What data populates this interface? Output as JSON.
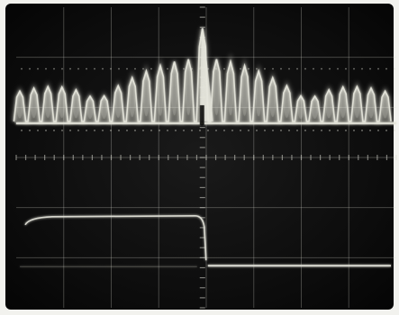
{
  "image": {
    "subject": "oscilloscope-display",
    "colors": {
      "frame": "#f2f2ee",
      "screen": "#0b0b0b",
      "graticule": "#d9d9d0",
      "trace": "#e6e6dc"
    },
    "graticule": {
      "columns": 8,
      "rows": 6,
      "minor_ticks_per_division": 5
    },
    "upper_trace": {
      "shape": "comb-spectrum",
      "center_fraction": 0.49,
      "peak_count_per_side": 13,
      "peak_at_center_level": 0.93,
      "baseline_level": 0.62
    },
    "lower_trace": {
      "shape": "step",
      "step_fraction": 0.49,
      "high_level": 0.3,
      "low_level": 0.14
    }
  }
}
